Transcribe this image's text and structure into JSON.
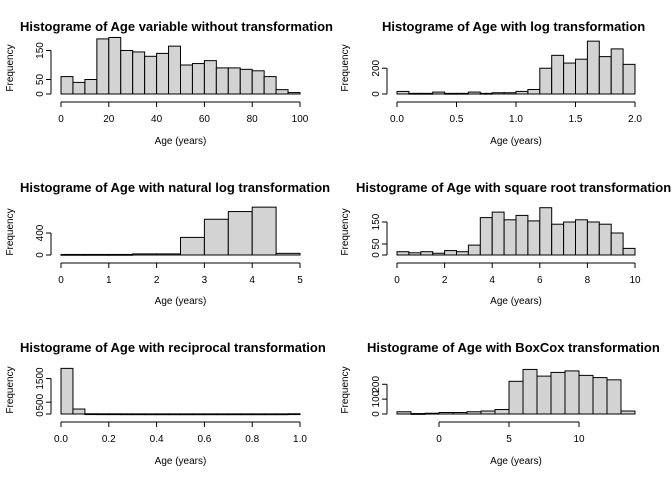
{
  "chart_data": [
    {
      "type": "bar",
      "title": "Histograme of Age variable without transformation",
      "xlabel": "Age (years)",
      "ylabel": "Frequency",
      "xlim": [
        0,
        100
      ],
      "ylim": [
        0,
        200
      ],
      "xticks": [
        0,
        20,
        40,
        60,
        80,
        100
      ],
      "xtick_labels": [
        "0",
        "20",
        "40",
        "60",
        "80",
        "100"
      ],
      "yticks": [
        0,
        50,
        150
      ],
      "ytick_labels": [
        "0",
        "50",
        "150"
      ],
      "bins": [
        [
          0,
          5
        ],
        [
          5,
          10
        ],
        [
          10,
          15
        ],
        [
          15,
          20
        ],
        [
          20,
          25
        ],
        [
          25,
          30
        ],
        [
          30,
          35
        ],
        [
          35,
          40
        ],
        [
          40,
          45
        ],
        [
          45,
          50
        ],
        [
          50,
          55
        ],
        [
          55,
          60
        ],
        [
          60,
          65
        ],
        [
          65,
          70
        ],
        [
          70,
          75
        ],
        [
          75,
          80
        ],
        [
          80,
          85
        ],
        [
          85,
          90
        ],
        [
          90,
          95
        ],
        [
          95,
          100
        ]
      ],
      "values": [
        60,
        40,
        50,
        190,
        195,
        150,
        145,
        130,
        140,
        165,
        100,
        105,
        115,
        90,
        90,
        85,
        80,
        60,
        15,
        5
      ]
    },
    {
      "type": "bar",
      "title": "Histograme of Age with log transformation",
      "xlabel": "Age (years)",
      "ylabel": "Frequency",
      "xlim": [
        0,
        2
      ],
      "ylim": [
        0,
        450
      ],
      "xticks": [
        0,
        0.5,
        1,
        1.5,
        2
      ],
      "xtick_labels": [
        "0.0",
        "0.5",
        "1.0",
        "1.5",
        "2.0"
      ],
      "yticks": [
        0,
        200
      ],
      "ytick_labels": [
        "0",
        "200"
      ],
      "bins": [
        [
          0,
          0.1
        ],
        [
          0.1,
          0.2
        ],
        [
          0.2,
          0.3
        ],
        [
          0.3,
          0.4
        ],
        [
          0.4,
          0.5
        ],
        [
          0.5,
          0.6
        ],
        [
          0.6,
          0.7
        ],
        [
          0.7,
          0.8
        ],
        [
          0.8,
          0.9
        ],
        [
          0.9,
          1.0
        ],
        [
          1.0,
          1.1
        ],
        [
          1.1,
          1.2
        ],
        [
          1.2,
          1.3
        ],
        [
          1.3,
          1.4
        ],
        [
          1.4,
          1.5
        ],
        [
          1.5,
          1.6
        ],
        [
          1.6,
          1.7
        ],
        [
          1.7,
          1.8
        ],
        [
          1.8,
          1.9
        ],
        [
          1.9,
          2.0
        ]
      ],
      "values": [
        20,
        5,
        5,
        15,
        5,
        5,
        15,
        5,
        10,
        10,
        20,
        35,
        200,
        300,
        240,
        270,
        410,
        290,
        350,
        230
      ]
    },
    {
      "type": "bar",
      "title": "Histograme of Age with natural log transformation",
      "xlabel": "Age (years)",
      "ylabel": "Frequency",
      "xlim": [
        0,
        5
      ],
      "ylim": [
        0,
        1000
      ],
      "xticks": [
        0,
        1,
        2,
        3,
        4,
        5
      ],
      "xtick_labels": [
        "0",
        "1",
        "2",
        "3",
        "4",
        "5"
      ],
      "yticks": [
        0,
        400
      ],
      "ytick_labels": [
        "0",
        "400"
      ],
      "bins": [
        [
          0,
          0.5
        ],
        [
          0.5,
          1
        ],
        [
          1,
          1.5
        ],
        [
          1.5,
          2
        ],
        [
          2,
          2.5
        ],
        [
          2.5,
          3
        ],
        [
          3,
          3.5
        ],
        [
          3.5,
          4
        ],
        [
          4,
          4.5
        ],
        [
          4.5,
          5
        ]
      ],
      "values": [
        10,
        10,
        10,
        20,
        20,
        320,
        650,
        790,
        870,
        30
      ]
    },
    {
      "type": "bar",
      "title": "Histograme of Age with square root transformation",
      "xlabel": "Age (years)",
      "ylabel": "Frequency",
      "xlim": [
        0,
        10
      ],
      "ylim": [
        0,
        250
      ],
      "xticks": [
        0,
        2,
        4,
        6,
        8,
        10
      ],
      "xtick_labels": [
        "0",
        "2",
        "4",
        "6",
        "8",
        "10"
      ],
      "yticks": [
        0,
        50,
        150
      ],
      "ytick_labels": [
        "0",
        "50",
        "150"
      ],
      "bins": [
        [
          0,
          0.5
        ],
        [
          0.5,
          1
        ],
        [
          1,
          1.5
        ],
        [
          1.5,
          2
        ],
        [
          2,
          2.5
        ],
        [
          2.5,
          3
        ],
        [
          3,
          3.5
        ],
        [
          3.5,
          4
        ],
        [
          4,
          4.5
        ],
        [
          4.5,
          5
        ],
        [
          5,
          5.5
        ],
        [
          5.5,
          6
        ],
        [
          6,
          6.5
        ],
        [
          6.5,
          7
        ],
        [
          7,
          7.5
        ],
        [
          7.5,
          8
        ],
        [
          8,
          8.5
        ],
        [
          8.5,
          9
        ],
        [
          9,
          9.5
        ],
        [
          9.5,
          10
        ]
      ],
      "values": [
        15,
        10,
        15,
        8,
        20,
        15,
        45,
        170,
        195,
        160,
        180,
        155,
        215,
        140,
        150,
        160,
        150,
        140,
        100,
        30
      ]
    },
    {
      "type": "bar",
      "title": "Histograme of Age with reciprocal transformation",
      "xlabel": "Age (years)",
      "ylabel": "Frequency",
      "xlim": [
        0,
        1
      ],
      "ylim": [
        0,
        2200
      ],
      "xticks": [
        0,
        0.2,
        0.4,
        0.6,
        0.8,
        1
      ],
      "xtick_labels": [
        "0.0",
        "0.2",
        "0.4",
        "0.6",
        "0.8",
        "1.0"
      ],
      "yticks": [
        0,
        500,
        1500
      ],
      "ytick_labels": [
        "0",
        "500",
        "1500"
      ],
      "bins": [
        [
          0,
          0.05
        ],
        [
          0.05,
          0.1
        ],
        [
          0.1,
          0.15
        ],
        [
          0.15,
          0.2
        ],
        [
          0.2,
          0.25
        ],
        [
          0.25,
          0.3
        ],
        [
          0.3,
          0.35
        ],
        [
          0.35,
          0.4
        ],
        [
          0.4,
          0.45
        ],
        [
          0.45,
          0.5
        ],
        [
          0.5,
          0.55
        ],
        [
          0.55,
          0.6
        ],
        [
          0.6,
          0.65
        ],
        [
          0.65,
          0.7
        ],
        [
          0.7,
          0.75
        ],
        [
          0.75,
          0.8
        ],
        [
          0.8,
          0.85
        ],
        [
          0.85,
          0.9
        ],
        [
          0.9,
          0.95
        ],
        [
          0.95,
          1.0
        ]
      ],
      "values": [
        1930,
        210,
        10,
        8,
        8,
        6,
        6,
        5,
        5,
        5,
        5,
        5,
        5,
        5,
        5,
        5,
        5,
        5,
        5,
        10
      ]
    },
    {
      "type": "bar",
      "title": "Histograme of Age with BoxCox transformation",
      "xlabel": "Age (years)",
      "ylabel": "Frequency",
      "xlim": [
        -3,
        14
      ],
      "ylim": [
        0,
        350
      ],
      "xticks": [
        0,
        5,
        10
      ],
      "xtick_labels": [
        "0",
        "5",
        "10"
      ],
      "yticks": [
        0,
        100,
        200
      ],
      "ytick_labels": [
        "0",
        "100",
        "200"
      ],
      "bins": [
        [
          -3,
          -2
        ],
        [
          -2,
          -1
        ],
        [
          -1,
          0
        ],
        [
          0,
          1
        ],
        [
          1,
          2
        ],
        [
          2,
          3
        ],
        [
          3,
          4
        ],
        [
          4,
          5
        ],
        [
          5,
          6
        ],
        [
          6,
          7
        ],
        [
          7,
          8
        ],
        [
          8,
          9
        ],
        [
          9,
          10
        ],
        [
          10,
          11
        ],
        [
          11,
          12
        ],
        [
          12,
          13
        ],
        [
          13,
          14
        ]
      ],
      "values": [
        15,
        3,
        5,
        10,
        10,
        15,
        20,
        30,
        220,
        300,
        255,
        280,
        290,
        260,
        245,
        230,
        20
      ]
    }
  ]
}
